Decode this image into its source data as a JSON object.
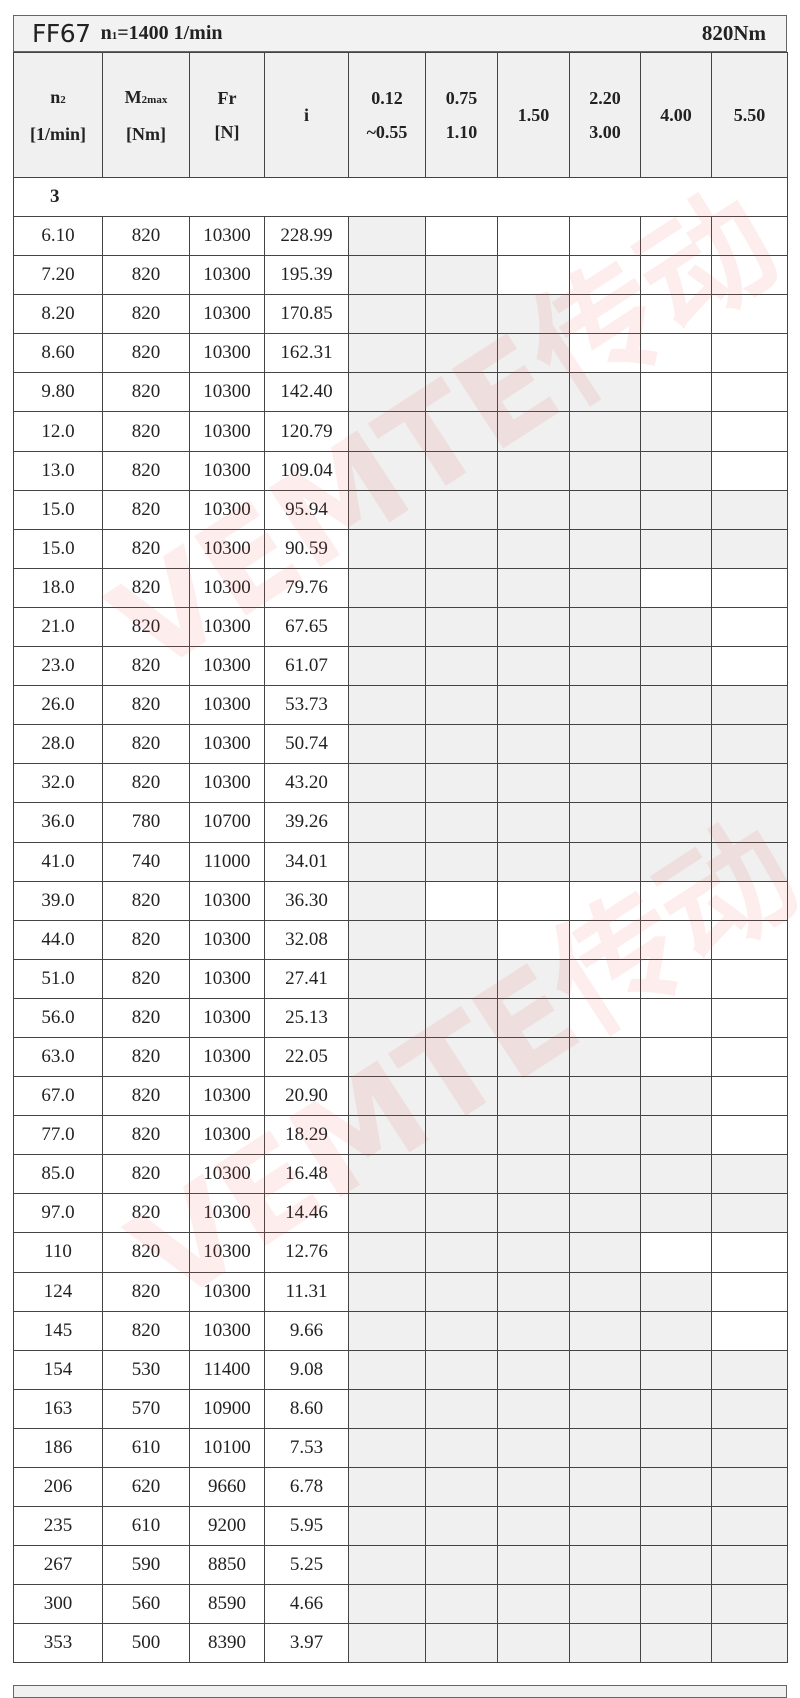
{
  "title": {
    "model": "FF67",
    "speed_prefix": "n",
    "speed_sub": "1",
    "speed_value": "=1400 1/min",
    "torque": "820Nm"
  },
  "headers": {
    "n2_line1": "n",
    "n2_sub": "2",
    "n2_line2": "[1/min]",
    "m2_line1": "M",
    "m2_sub": "2max",
    "m2_line2": "[Nm]",
    "fr_line1": "Fr",
    "fr_line2": "[N]",
    "i": "i",
    "power": [
      [
        "0.12",
        "~0.55"
      ],
      [
        "0.75",
        "1.10"
      ],
      [
        "1.50",
        ""
      ],
      [
        "2.20",
        "3.00"
      ],
      [
        "4.00",
        ""
      ],
      [
        "5.50",
        ""
      ]
    ]
  },
  "section_label": "3",
  "watermark": "VEMTE传动",
  "colors": {
    "available": "#eff0ef",
    "unavailable": "#ffffff",
    "header_bg": "#f0f0f0"
  },
  "rows": [
    {
      "n2": "6.10",
      "m2": "820",
      "fr": "10300",
      "i": "228.99",
      "avail": [
        1,
        0,
        0,
        0,
        0,
        0
      ]
    },
    {
      "n2": "7.20",
      "m2": "820",
      "fr": "10300",
      "i": "195.39",
      "avail": [
        1,
        1,
        0,
        0,
        0,
        0
      ]
    },
    {
      "n2": "8.20",
      "m2": "820",
      "fr": "10300",
      "i": "170.85",
      "avail": [
        1,
        1,
        1,
        0,
        0,
        0
      ]
    },
    {
      "n2": "8.60",
      "m2": "820",
      "fr": "10300",
      "i": "162.31",
      "avail": [
        1,
        1,
        1,
        0,
        0,
        0
      ]
    },
    {
      "n2": "9.80",
      "m2": "820",
      "fr": "10300",
      "i": "142.40",
      "avail": [
        1,
        1,
        1,
        1,
        0,
        0
      ]
    },
    {
      "n2": "12.0",
      "m2": "820",
      "fr": "10300",
      "i": "120.79",
      "avail": [
        1,
        1,
        1,
        1,
        1,
        0
      ]
    },
    {
      "n2": "13.0",
      "m2": "820",
      "fr": "10300",
      "i": "109.04",
      "avail": [
        1,
        1,
        1,
        1,
        1,
        0
      ]
    },
    {
      "n2": "15.0",
      "m2": "820",
      "fr": "10300",
      "i": "95.94",
      "avail": [
        1,
        1,
        1,
        1,
        1,
        1
      ]
    },
    {
      "n2": "15.0",
      "m2": "820",
      "fr": "10300",
      "i": "90.59",
      "avail": [
        1,
        1,
        1,
        1,
        1,
        1
      ]
    },
    {
      "n2": "18.0",
      "m2": "820",
      "fr": "10300",
      "i": "79.76",
      "avail": [
        1,
        1,
        1,
        1,
        0,
        0
      ]
    },
    {
      "n2": "21.0",
      "m2": "820",
      "fr": "10300",
      "i": "67.65",
      "avail": [
        1,
        1,
        1,
        1,
        1,
        0
      ]
    },
    {
      "n2": "23.0",
      "m2": "820",
      "fr": "10300",
      "i": "61.07",
      "avail": [
        1,
        1,
        1,
        1,
        1,
        0
      ]
    },
    {
      "n2": "26.0",
      "m2": "820",
      "fr": "10300",
      "i": "53.73",
      "avail": [
        1,
        1,
        1,
        1,
        1,
        1
      ]
    },
    {
      "n2": "28.0",
      "m2": "820",
      "fr": "10300",
      "i": "50.74",
      "avail": [
        1,
        1,
        1,
        1,
        1,
        1
      ]
    },
    {
      "n2": "32.0",
      "m2": "820",
      "fr": "10300",
      "i": "43.20",
      "avail": [
        1,
        1,
        1,
        1,
        1,
        1
      ]
    },
    {
      "n2": "36.0",
      "m2": "780",
      "fr": "10700",
      "i": "39.26",
      "avail": [
        1,
        1,
        1,
        1,
        1,
        1
      ]
    },
    {
      "n2": "41.0",
      "m2": "740",
      "fr": "11000",
      "i": "34.01",
      "avail": [
        1,
        1,
        1,
        1,
        1,
        1
      ]
    },
    {
      "n2": "39.0",
      "m2": "820",
      "fr": "10300",
      "i": "36.30",
      "avail": [
        1,
        0,
        0,
        0,
        0,
        0
      ]
    },
    {
      "n2": "44.0",
      "m2": "820",
      "fr": "10300",
      "i": "32.08",
      "avail": [
        1,
        1,
        0,
        0,
        0,
        0
      ]
    },
    {
      "n2": "51.0",
      "m2": "820",
      "fr": "10300",
      "i": "27.41",
      "avail": [
        1,
        1,
        1,
        0,
        0,
        0
      ]
    },
    {
      "n2": "56.0",
      "m2": "820",
      "fr": "10300",
      "i": "25.13",
      "avail": [
        1,
        1,
        1,
        0,
        0,
        0
      ]
    },
    {
      "n2": "63.0",
      "m2": "820",
      "fr": "10300",
      "i": "22.05",
      "avail": [
        1,
        1,
        1,
        1,
        0,
        0
      ]
    },
    {
      "n2": "67.0",
      "m2": "820",
      "fr": "10300",
      "i": "20.90",
      "avail": [
        1,
        1,
        1,
        1,
        1,
        0
      ]
    },
    {
      "n2": "77.0",
      "m2": "820",
      "fr": "10300",
      "i": "18.29",
      "avail": [
        1,
        1,
        1,
        1,
        1,
        0
      ]
    },
    {
      "n2": "85.0",
      "m2": "820",
      "fr": "10300",
      "i": "16.48",
      "avail": [
        1,
        1,
        1,
        1,
        1,
        1
      ]
    },
    {
      "n2": "97.0",
      "m2": "820",
      "fr": "10300",
      "i": "14.46",
      "avail": [
        1,
        1,
        1,
        1,
        1,
        1
      ]
    },
    {
      "n2": "110",
      "m2": "820",
      "fr": "10300",
      "i": "12.76",
      "avail": [
        1,
        1,
        1,
        1,
        0,
        0
      ]
    },
    {
      "n2": "124",
      "m2": "820",
      "fr": "10300",
      "i": "11.31",
      "avail": [
        1,
        1,
        1,
        1,
        1,
        0
      ]
    },
    {
      "n2": "145",
      "m2": "820",
      "fr": "10300",
      "i": "9.66",
      "avail": [
        1,
        1,
        1,
        1,
        1,
        0
      ]
    },
    {
      "n2": "154",
      "m2": "530",
      "fr": "11400",
      "i": "9.08",
      "avail": [
        1,
        1,
        1,
        1,
        1,
        1
      ]
    },
    {
      "n2": "163",
      "m2": "570",
      "fr": "10900",
      "i": "8.60",
      "avail": [
        1,
        1,
        1,
        1,
        1,
        1
      ]
    },
    {
      "n2": "186",
      "m2": "610",
      "fr": "10100",
      "i": "7.53",
      "avail": [
        1,
        1,
        1,
        1,
        1,
        1
      ]
    },
    {
      "n2": "206",
      "m2": "620",
      "fr": "9660",
      "i": "6.78",
      "avail": [
        1,
        1,
        1,
        1,
        1,
        1
      ]
    },
    {
      "n2": "235",
      "m2": "610",
      "fr": "9200",
      "i": "5.95",
      "avail": [
        1,
        1,
        1,
        1,
        1,
        1
      ]
    },
    {
      "n2": "267",
      "m2": "590",
      "fr": "8850",
      "i": "5.25",
      "avail": [
        1,
        1,
        1,
        1,
        1,
        1
      ]
    },
    {
      "n2": "300",
      "m2": "560",
      "fr": "8590",
      "i": "4.66",
      "avail": [
        1,
        1,
        1,
        1,
        1,
        1
      ]
    },
    {
      "n2": "353",
      "m2": "500",
      "fr": "8390",
      "i": "3.97",
      "avail": [
        1,
        1,
        1,
        1,
        1,
        1
      ]
    }
  ]
}
